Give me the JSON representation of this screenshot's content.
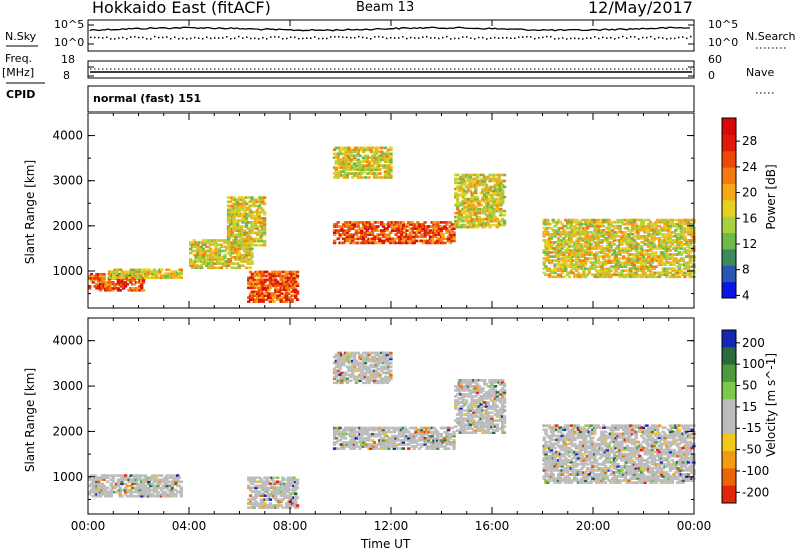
{
  "header": {
    "station": "Hokkaido East (fitACF)",
    "beam": "Beam 13",
    "date": "12/May/2017"
  },
  "top_panels": {
    "nsky_label": "N.Sky",
    "nsky_ticks": [
      "10^5",
      "10^0"
    ],
    "nsearch_label": "N.Search",
    "nsearch_ticks": [
      "10^5",
      "10^0"
    ],
    "freq_label": "Freq.",
    "freq_unit": "[MHz]",
    "freq_ticks": [
      "18",
      "8"
    ],
    "nave_label": "Nave",
    "nave_ticks": [
      "60",
      "0"
    ],
    "cpid_label": "CPID",
    "cpid_value": "normal (fast) 151"
  },
  "chart_data": [
    {
      "type": "heatmap",
      "panel": "power",
      "ylabel": "Slant Range [km]",
      "y_ticks": [
        "4000",
        "3000",
        "2000",
        "1000"
      ],
      "ylim": [
        180,
        4500
      ],
      "xlim": [
        0,
        24
      ],
      "colorbar": {
        "label": "Power [dB]",
        "ticks": [
          "28",
          "24",
          "20",
          "16",
          "12",
          "8",
          "4"
        ],
        "colors": [
          "#0a14e6",
          "#2a55b0",
          "#3e8a5a",
          "#6fb84a",
          "#a8d040",
          "#e8d020",
          "#f4a818",
          "#f47a10",
          "#ec4808",
          "#e01a06",
          "#d80808"
        ]
      },
      "features": [
        {
          "t": [
            0.0,
            2.2
          ],
          "r": [
            600,
            1000
          ],
          "level": "high"
        },
        {
          "t": [
            0.8,
            3.7
          ],
          "r": [
            880,
            1100
          ],
          "level": "mid"
        },
        {
          "t": [
            4.0,
            6.5
          ],
          "r": [
            1100,
            1750
          ],
          "level": "mid"
        },
        {
          "t": [
            6.3,
            8.3
          ],
          "r": [
            350,
            1050
          ],
          "level": "high"
        },
        {
          "t": [
            5.5,
            7.0
          ],
          "r": [
            1600,
            2700
          ],
          "level": "mid"
        },
        {
          "t": [
            9.7,
            12.0
          ],
          "r": [
            3100,
            3800
          ],
          "level": "mid"
        },
        {
          "t": [
            9.7,
            14.5
          ],
          "r": [
            1650,
            2150
          ],
          "level": "high"
        },
        {
          "t": [
            14.5,
            16.5
          ],
          "r": [
            2000,
            3200
          ],
          "level": "mid"
        },
        {
          "t": [
            18.0,
            24.0
          ],
          "r": [
            900,
            2200
          ],
          "level": "mid"
        }
      ]
    },
    {
      "type": "heatmap",
      "panel": "velocity",
      "ylabel": "Slant Range [km]",
      "y_ticks": [
        "4000",
        "3000",
        "2000",
        "1000"
      ],
      "ylim": [
        180,
        4500
      ],
      "xlim": [
        0,
        24
      ],
      "xlabel": "Time UT",
      "x_ticks": [
        "00:00",
        "04:00",
        "08:00",
        "12:00",
        "16:00",
        "20:00",
        "00:00"
      ],
      "colorbar": {
        "label": "Velocity [m s^-1]",
        "ticks": [
          "200",
          "100",
          "50",
          "15",
          "-15",
          "-50",
          "-100",
          "-200"
        ],
        "colors": [
          "#1428b4",
          "#2a6a3a",
          "#4e9a3c",
          "#7cc848",
          "#bcbcbc",
          "#bcbcbc",
          "#f4c818",
          "#f49a10",
          "#ec6408",
          "#e02808"
        ]
      },
      "features": [
        {
          "t": [
            0.0,
            3.7
          ],
          "r": [
            600,
            1100
          ],
          "level": "low"
        },
        {
          "t": [
            6.3,
            8.3
          ],
          "r": [
            350,
            1050
          ],
          "level": "low"
        },
        {
          "t": [
            9.7,
            12.0
          ],
          "r": [
            3100,
            3800
          ],
          "level": "low"
        },
        {
          "t": [
            9.7,
            14.5
          ],
          "r": [
            1650,
            2150
          ],
          "level": "low"
        },
        {
          "t": [
            14.5,
            16.5
          ],
          "r": [
            2000,
            3200
          ],
          "level": "low"
        },
        {
          "t": [
            18.0,
            24.0
          ],
          "r": [
            900,
            2200
          ],
          "level": "low"
        }
      ]
    }
  ]
}
